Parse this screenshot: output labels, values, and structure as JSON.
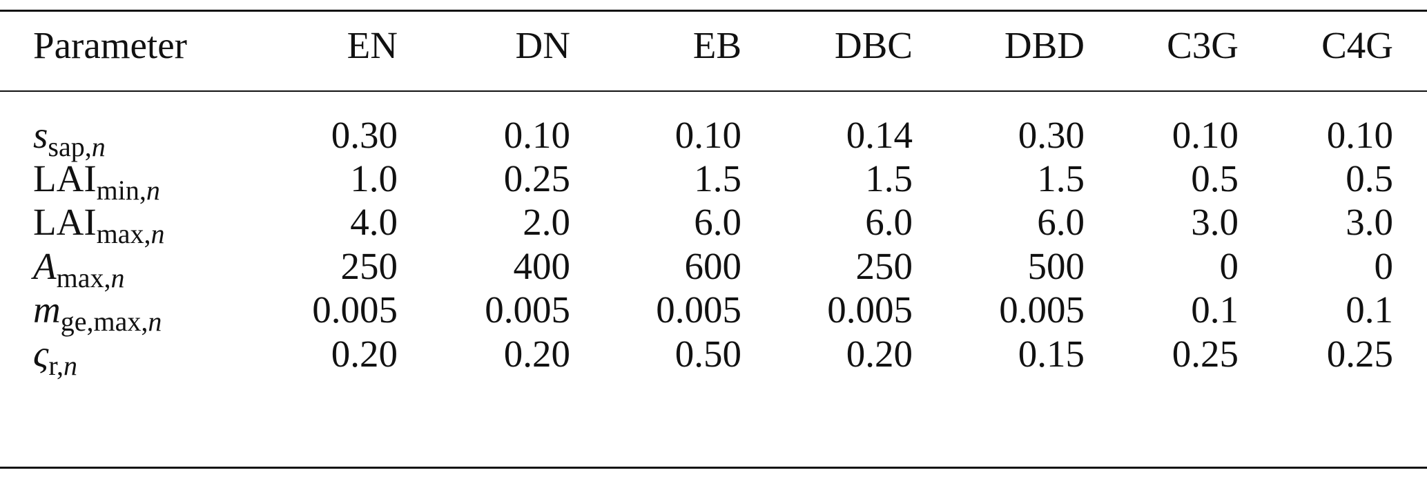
{
  "table": {
    "header": [
      "Parameter",
      "EN",
      "DN",
      "EB",
      "DBC",
      "DBD",
      "C3G",
      "C4G"
    ],
    "rows": [
      {
        "symbol": "s",
        "subscript": "sap,",
        "subscript_var": "n",
        "symbol_italic": true,
        "values": [
          "0.30",
          "0.10",
          "0.10",
          "0.14",
          "0.30",
          "0.10",
          "0.10"
        ]
      },
      {
        "symbol": "LAI",
        "subscript": "min,",
        "subscript_var": "n",
        "symbol_italic": false,
        "values": [
          "1.0",
          "0.25",
          "1.5",
          "1.5",
          "1.5",
          "0.5",
          "0.5"
        ]
      },
      {
        "symbol": "LAI",
        "subscript": "max,",
        "subscript_var": "n",
        "symbol_italic": false,
        "values": [
          "4.0",
          "2.0",
          "6.0",
          "6.0",
          "6.0",
          "3.0",
          "3.0"
        ]
      },
      {
        "symbol": "A",
        "subscript": "max,",
        "subscript_var": "n",
        "symbol_italic": true,
        "values": [
          "250",
          "400",
          "600",
          "250",
          "500",
          "0",
          "0"
        ]
      },
      {
        "symbol": "m",
        "subscript": "ge,max,",
        "subscript_var": "n",
        "symbol_italic": true,
        "values": [
          "0.005",
          "0.005",
          "0.005",
          "0.005",
          "0.005",
          "0.1",
          "0.1"
        ]
      },
      {
        "symbol": "ς",
        "subscript": "r,",
        "subscript_var": "n",
        "symbol_italic": true,
        "values": [
          "0.20",
          "0.20",
          "0.50",
          "0.20",
          "0.15",
          "0.25",
          "0.25"
        ]
      }
    ]
  }
}
